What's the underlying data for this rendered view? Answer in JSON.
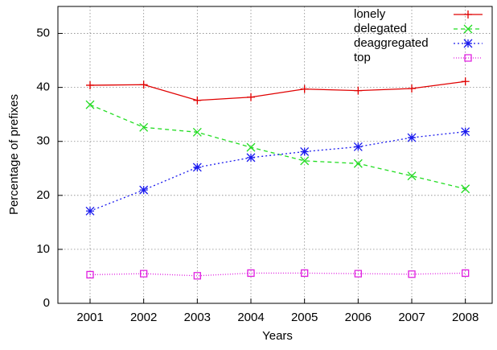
{
  "chart_data": {
    "type": "line",
    "x_label": "Years",
    "y_label": "Percentage of prefixes",
    "x": [
      2001,
      2002,
      2003,
      2004,
      2005,
      2006,
      2007,
      2008
    ],
    "xlim": [
      2000.4,
      2008.5
    ],
    "xticks": [
      2001,
      2002,
      2003,
      2004,
      2005,
      2006,
      2007,
      2008
    ],
    "ylim": [
      0,
      55
    ],
    "yticks": [
      0,
      10,
      20,
      30,
      40,
      50
    ],
    "grid": true,
    "legend": "top-right",
    "series": [
      {
        "name": "lonely",
        "color": "#e00000",
        "marker": "plus",
        "dash": "solid",
        "values": [
          40.4,
          40.5,
          37.6,
          38.2,
          39.7,
          39.4,
          39.8,
          41.1
        ]
      },
      {
        "name": "delegated",
        "color": "#22dd22",
        "marker": "cross",
        "dash": "dashed",
        "values": [
          36.8,
          32.6,
          31.7,
          28.9,
          26.4,
          25.9,
          23.6,
          21.2
        ]
      },
      {
        "name": "deaggregated",
        "color": "#1a1aee",
        "marker": "star",
        "dash": "dotted",
        "values": [
          17.1,
          21.0,
          25.2,
          27.0,
          28.1,
          29.0,
          30.7,
          31.8
        ]
      },
      {
        "name": "top",
        "color": "#e020e0",
        "marker": "square",
        "dash": "fine",
        "values": [
          5.3,
          5.5,
          5.1,
          5.6,
          5.6,
          5.5,
          5.4,
          5.6
        ]
      }
    ]
  }
}
